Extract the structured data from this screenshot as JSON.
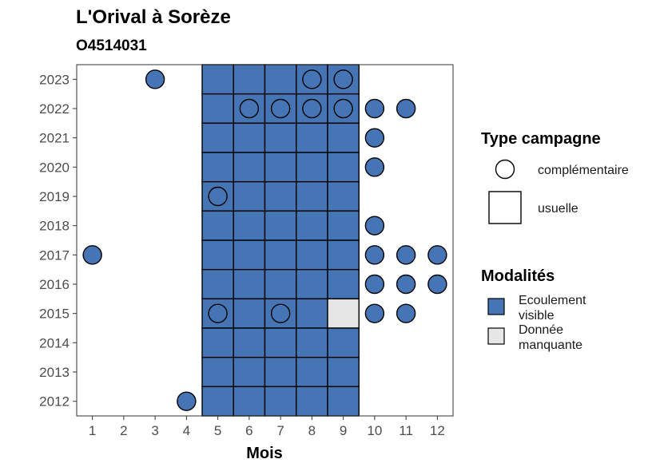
{
  "chart_data": {
    "type": "heatmap",
    "title": "L'Orival à Sorèze",
    "subtitle": "O4514031",
    "xlabel": "Mois",
    "ylabel": "",
    "x_ticks": [
      "1",
      "2",
      "3",
      "4",
      "5",
      "6",
      "7",
      "8",
      "9",
      "10",
      "11",
      "12"
    ],
    "y_ticks": [
      "2012",
      "2013",
      "2014",
      "2015",
      "2016",
      "2017",
      "2018",
      "2019",
      "2020",
      "2021",
      "2022",
      "2023"
    ],
    "xlim": [
      0.5,
      12.5
    ],
    "ylim": [
      2011.5,
      2023.5
    ],
    "colors": {
      "Ecoulement visible": "#4575b4",
      "Donnée manquante": "#e6e6e6"
    },
    "usuelle": [
      {
        "year": 2023,
        "months": [
          5,
          6,
          7,
          8,
          9
        ],
        "modalite": "Ecoulement visible"
      },
      {
        "year": 2022,
        "months": [
          5,
          6,
          7,
          8,
          9
        ],
        "modalite": "Ecoulement visible"
      },
      {
        "year": 2021,
        "months": [
          5,
          6,
          7,
          8,
          9
        ],
        "modalite": "Ecoulement visible"
      },
      {
        "year": 2020,
        "months": [
          5,
          6,
          7,
          8,
          9
        ],
        "modalite": "Ecoulement visible"
      },
      {
        "year": 2019,
        "months": [
          5,
          6,
          7,
          8,
          9
        ],
        "modalite": "Ecoulement visible"
      },
      {
        "year": 2018,
        "months": [
          5,
          6,
          7,
          8,
          9
        ],
        "modalite": "Ecoulement visible"
      },
      {
        "year": 2017,
        "months": [
          5,
          6,
          7,
          8,
          9
        ],
        "modalite": "Ecoulement visible"
      },
      {
        "year": 2016,
        "months": [
          5,
          6,
          7,
          8,
          9
        ],
        "modalite": "Ecoulement visible"
      },
      {
        "year": 2015,
        "months": [
          5,
          6,
          7,
          8
        ],
        "modalite": "Ecoulement visible"
      },
      {
        "year": 2015,
        "months": [
          9
        ],
        "modalite": "Donnée manquante"
      },
      {
        "year": 2014,
        "months": [
          5,
          6,
          7,
          8,
          9
        ],
        "modalite": "Ecoulement visible"
      },
      {
        "year": 2013,
        "months": [
          5,
          6,
          7,
          8,
          9
        ],
        "modalite": "Ecoulement visible"
      },
      {
        "year": 2012,
        "months": [
          5,
          6,
          7,
          8,
          9
        ],
        "modalite": "Ecoulement visible"
      }
    ],
    "complementaire": [
      {
        "year": 2023,
        "month": 3,
        "modalite": "Ecoulement visible"
      },
      {
        "year": 2023,
        "month": 8,
        "modalite": "Ecoulement visible"
      },
      {
        "year": 2023,
        "month": 9,
        "modalite": "Ecoulement visible"
      },
      {
        "year": 2022,
        "month": 6,
        "modalite": "Ecoulement visible"
      },
      {
        "year": 2022,
        "month": 7,
        "modalite": "Ecoulement visible"
      },
      {
        "year": 2022,
        "month": 8,
        "modalite": "Ecoulement visible"
      },
      {
        "year": 2022,
        "month": 9,
        "modalite": "Ecoulement visible"
      },
      {
        "year": 2022,
        "month": 10,
        "modalite": "Ecoulement visible"
      },
      {
        "year": 2022,
        "month": 11,
        "modalite": "Ecoulement visible"
      },
      {
        "year": 2021,
        "month": 10,
        "modalite": "Ecoulement visible"
      },
      {
        "year": 2020,
        "month": 10,
        "modalite": "Ecoulement visible"
      },
      {
        "year": 2019,
        "month": 5,
        "modalite": "Ecoulement visible"
      },
      {
        "year": 2018,
        "month": 10,
        "modalite": "Ecoulement visible"
      },
      {
        "year": 2017,
        "month": 1,
        "modalite": "Ecoulement visible"
      },
      {
        "year": 2017,
        "month": 10,
        "modalite": "Ecoulement visible"
      },
      {
        "year": 2017,
        "month": 11,
        "modalite": "Ecoulement visible"
      },
      {
        "year": 2017,
        "month": 12,
        "modalite": "Ecoulement visible"
      },
      {
        "year": 2016,
        "month": 10,
        "modalite": "Ecoulement visible"
      },
      {
        "year": 2016,
        "month": 11,
        "modalite": "Ecoulement visible"
      },
      {
        "year": 2016,
        "month": 12,
        "modalite": "Ecoulement visible"
      },
      {
        "year": 2015,
        "month": 5,
        "modalite": "Ecoulement visible"
      },
      {
        "year": 2015,
        "month": 7,
        "modalite": "Ecoulement visible"
      },
      {
        "year": 2015,
        "month": 10,
        "modalite": "Ecoulement visible"
      },
      {
        "year": 2015,
        "month": 11,
        "modalite": "Ecoulement visible"
      },
      {
        "year": 2012,
        "month": 4,
        "modalite": "Ecoulement visible"
      }
    ],
    "legend": {
      "type_title": "Type campagne",
      "type_items": [
        "complémentaire",
        "usuelle"
      ],
      "modalites_title": "Modalités",
      "modalites_items": [
        {
          "lines": [
            "Ecoulement",
            "visible"
          ],
          "key": "Ecoulement visible"
        },
        {
          "lines": [
            "Donnée",
            "manquante"
          ],
          "key": "Donnée manquante"
        }
      ]
    },
    "legend_position": "right",
    "grid": false
  }
}
